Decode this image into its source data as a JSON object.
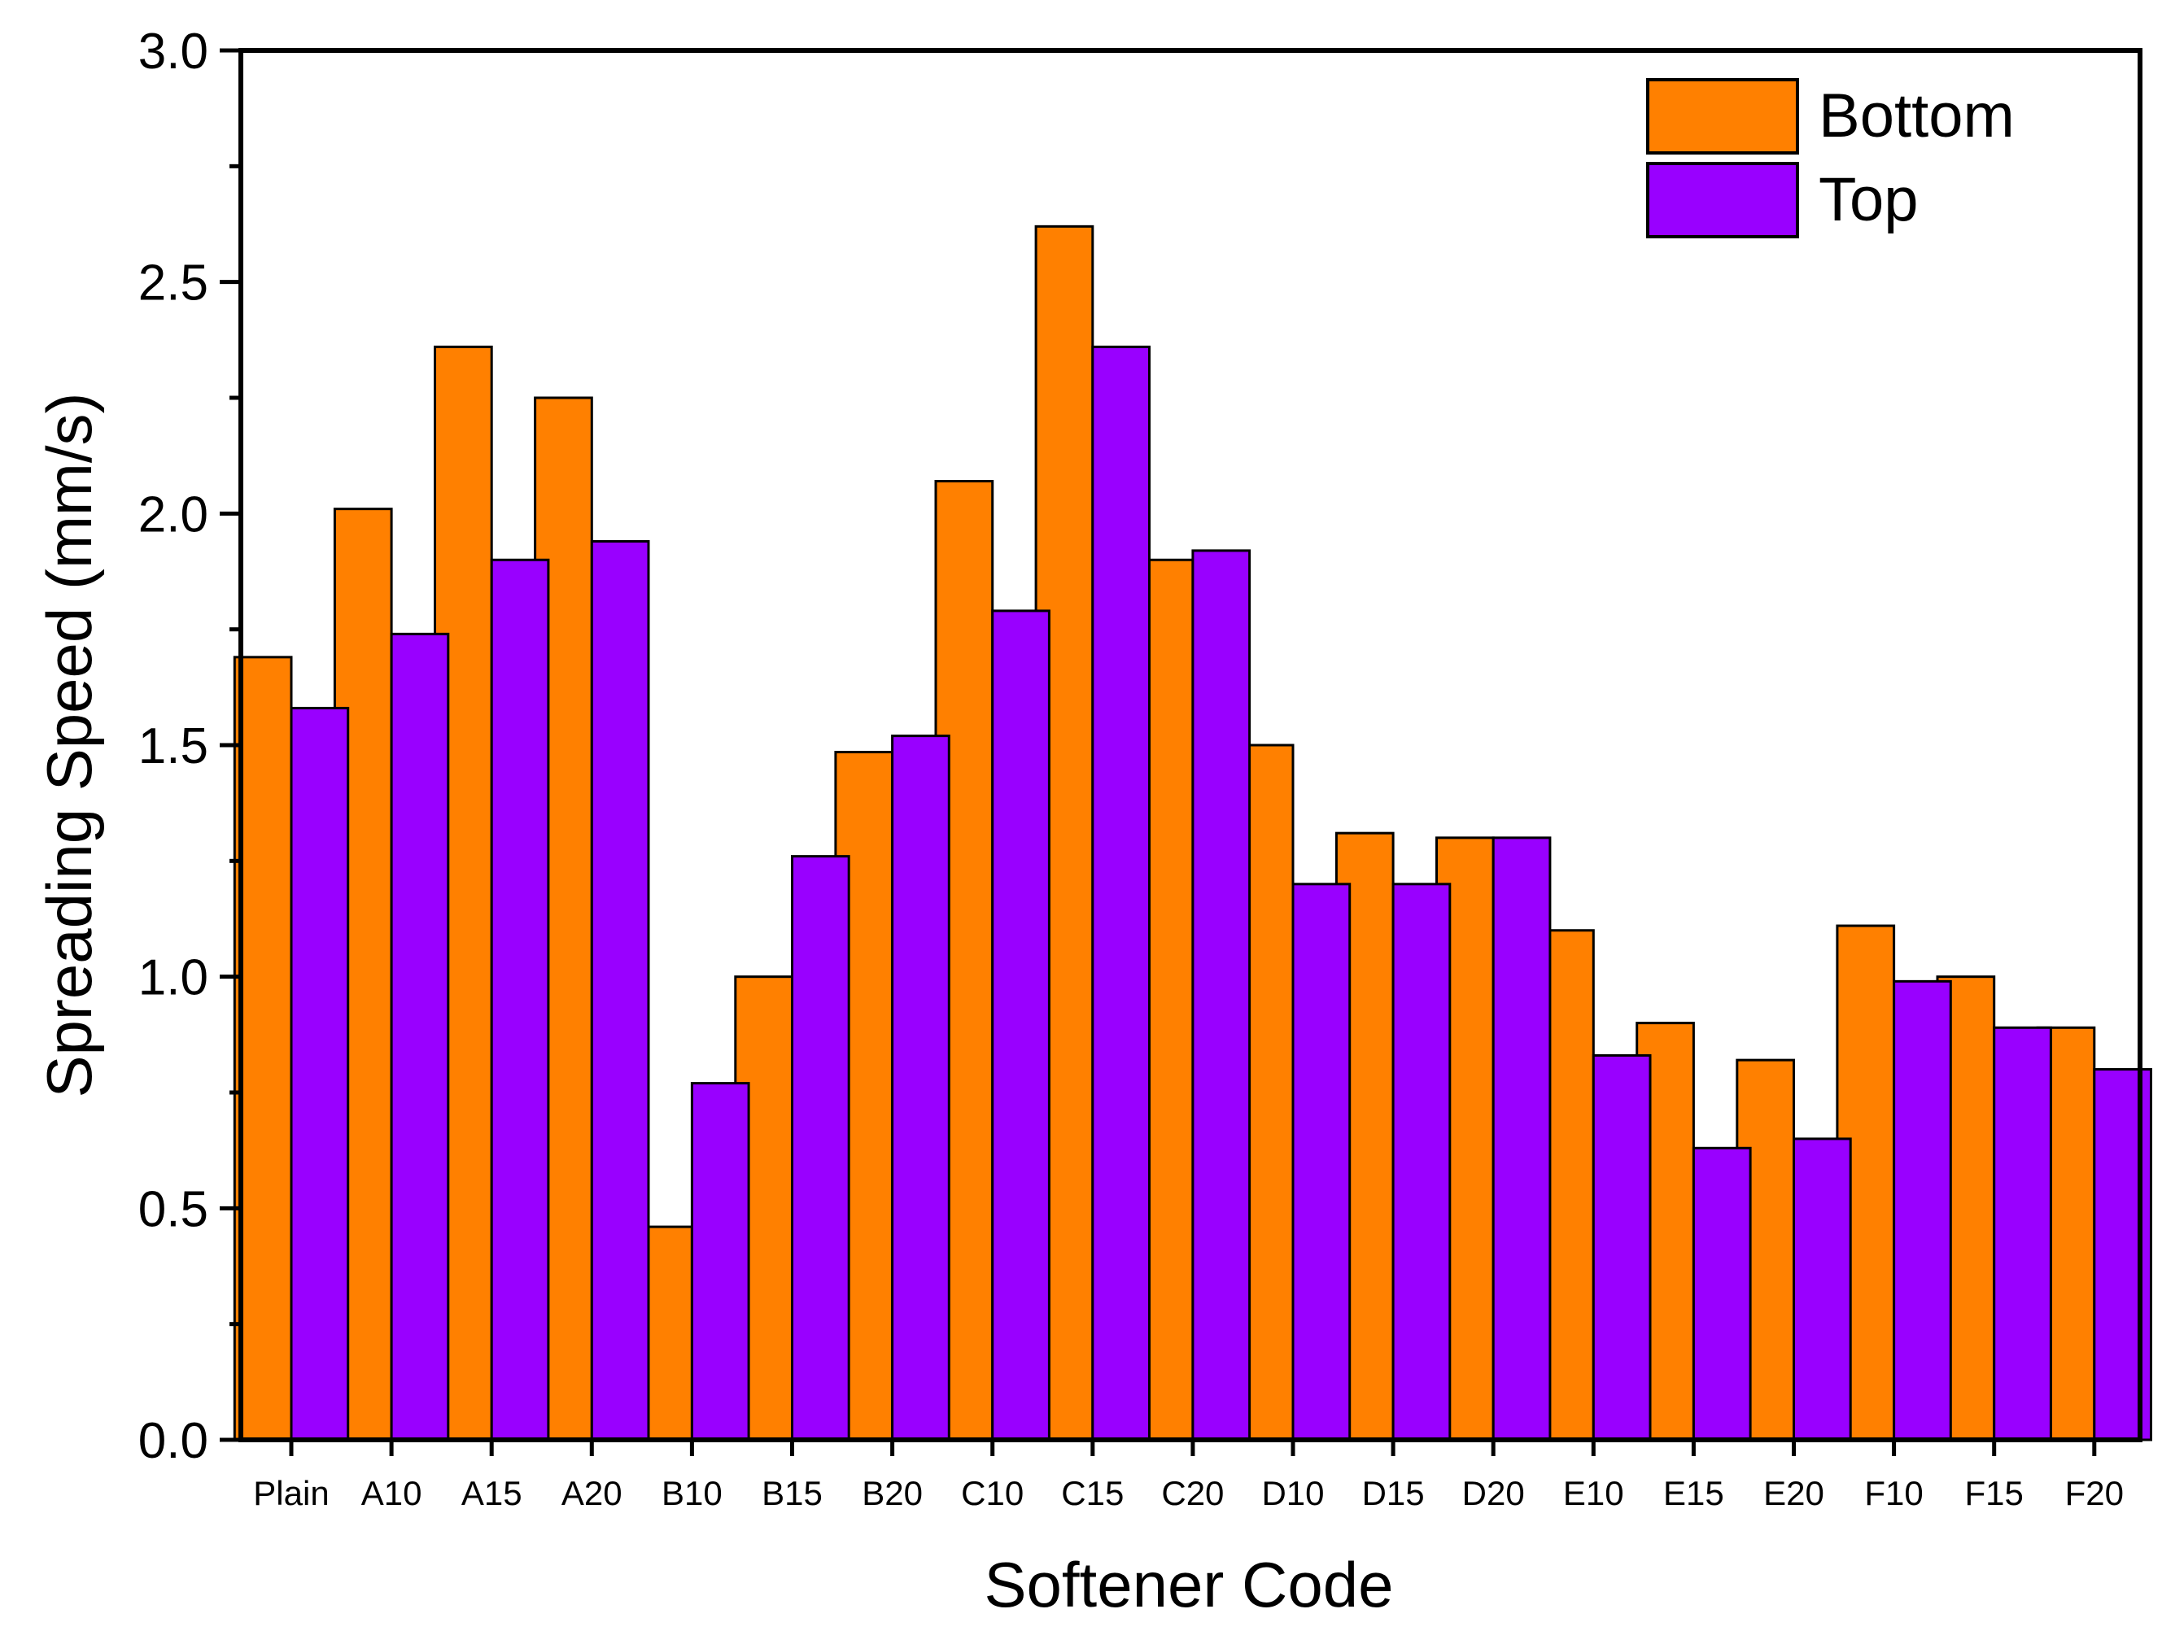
{
  "chart_data": {
    "type": "bar",
    "title": "",
    "xlabel": "Softener Code",
    "ylabel": "Spreading Speed (mm/s)",
    "ylim": [
      0,
      3.0
    ],
    "yticks": [
      "0.0",
      "0.5",
      "1.0",
      "1.5",
      "2.0",
      "2.5",
      "3.0"
    ],
    "categories": [
      "Plain",
      "A10",
      "A15",
      "A20",
      "B10",
      "B15",
      "B20",
      "C10",
      "C15",
      "C20",
      "D10",
      "D15",
      "D20",
      "E10",
      "E15",
      "E20",
      "F10",
      "F15",
      "F20"
    ],
    "series": [
      {
        "name": "Bottom",
        "color": "#FF8000",
        "values": [
          1.69,
          2.01,
          2.36,
          2.25,
          0.46,
          1.0,
          1.485,
          2.07,
          2.62,
          1.9,
          1.5,
          1.31,
          1.3,
          1.1,
          0.9,
          0.82,
          1.11,
          1.0,
          0.89
        ]
      },
      {
        "name": "Top",
        "color": "#9900FF",
        "values": [
          1.58,
          1.74,
          1.9,
          1.94,
          0.77,
          1.26,
          1.52,
          1.79,
          2.36,
          1.92,
          1.2,
          1.2,
          1.3,
          0.83,
          0.63,
          0.65,
          0.99,
          0.89,
          0.8
        ]
      }
    ],
    "legend": {
      "position": "top-right"
    },
    "grid": false
  }
}
